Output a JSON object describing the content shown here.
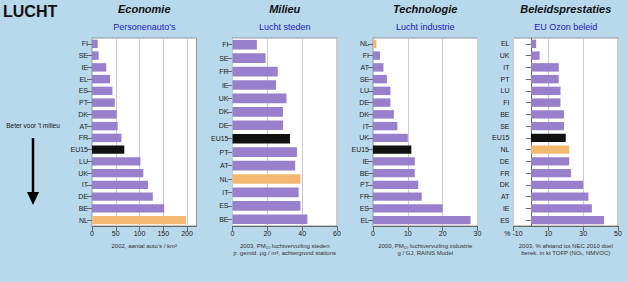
{
  "title": "LUCHT",
  "annotations": [
    "Beter voor 't milieu"
  ],
  "chart_data": [
    {
      "type": "bar",
      "orientation": "horizontal",
      "grid": true,
      "title": "Economie",
      "subtitle": "Personenauto's",
      "xlabel": "2002, aantal auto's / km²",
      "xlim": [
        0,
        220
      ],
      "xticks": [
        0,
        50,
        100,
        150,
        200
      ],
      "categories": [
        "FI",
        "SE",
        "IE",
        "EL",
        "ES",
        "PT",
        "DK",
        "AT",
        "FR",
        "EU15",
        "LU",
        "UK",
        "IT",
        "DE",
        "BE",
        "NL"
      ],
      "values": [
        12,
        14,
        30,
        38,
        43,
        48,
        52,
        54,
        62,
        68,
        102,
        108,
        118,
        128,
        152,
        198
      ],
      "colors": [
        "#9980cc",
        "#9980cc",
        "#9980cc",
        "#9980cc",
        "#9980cc",
        "#9980cc",
        "#9980cc",
        "#9980cc",
        "#9980cc",
        "#111111",
        "#9980cc",
        "#9980cc",
        "#9980cc",
        "#9980cc",
        "#9980cc",
        "#f5b870"
      ]
    },
    {
      "type": "bar",
      "orientation": "horizontal",
      "grid": true,
      "title": "Milieu",
      "subtitle": "Lucht steden",
      "xlabel": "2003, PM₁₀ luchtvervuiling steden\njr. gemid. μg / m³, achtergrond stations",
      "xlim": [
        0,
        60
      ],
      "xticks": [
        0,
        20,
        40,
        60
      ],
      "categories": [
        "FI",
        "SE",
        "FR",
        "IE",
        "UK",
        "DK",
        "DE",
        "EU15",
        "PT",
        "AT",
        "NL",
        "IT",
        "ES",
        "BE"
      ],
      "values": [
        14,
        19,
        26,
        25,
        31,
        29,
        29,
        33,
        37,
        36,
        39,
        38,
        39,
        43
      ],
      "colors": [
        "#9980cc",
        "#9980cc",
        "#9980cc",
        "#9980cc",
        "#9980cc",
        "#9980cc",
        "#9980cc",
        "#111111",
        "#9980cc",
        "#9980cc",
        "#f5b870",
        "#9980cc",
        "#9980cc",
        "#9980cc"
      ]
    },
    {
      "type": "bar",
      "orientation": "horizontal",
      "grid": true,
      "title": "Technologie",
      "subtitle": "Lucht industrie",
      "xlabel": "2000, PM₁₀ luchtvervuiling industrie\ng / GJ, RAINS Model",
      "xlim": [
        0,
        30
      ],
      "xticks": [
        0,
        10,
        20,
        30
      ],
      "categories": [
        "NL",
        "FI",
        "AT",
        "SE",
        "LU",
        "DE",
        "DK",
        "IT",
        "UK",
        "EU15",
        "IE",
        "BE",
        "PT",
        "FR",
        "ES",
        "EL"
      ],
      "values": [
        1,
        2,
        3,
        4,
        5,
        5,
        6,
        7,
        10,
        11,
        12,
        12,
        13,
        14,
        20,
        28
      ],
      "colors": [
        "#f5b870",
        "#9980cc",
        "#9980cc",
        "#9980cc",
        "#9980cc",
        "#9980cc",
        "#9980cc",
        "#9980cc",
        "#9980cc",
        "#111111",
        "#9980cc",
        "#9980cc",
        "#9980cc",
        "#9980cc",
        "#9980cc",
        "#9980cc"
      ]
    },
    {
      "type": "bar",
      "orientation": "horizontal",
      "grid": true,
      "title": "Beleidsprestaties",
      "subtitle": "EU Ozon beleid",
      "xlabel": "2003, % afstand tot NEC 2010 doel\nberek. in kt TOFP (NOₓ, NMVOC)",
      "xlim": [
        -10,
        50
      ],
      "xticks": [
        {
          "value": -10,
          "label": "% -10"
        },
        10,
        30,
        50
      ],
      "categories": [
        "EL",
        "UK",
        "IT",
        "PT",
        "LU",
        "FI",
        "BE",
        "SE",
        "EU15",
        "NL",
        "DE",
        "FR",
        "DK",
        "AT",
        "IE",
        "ES"
      ],
      "values": [
        3,
        5,
        16,
        16,
        17,
        17,
        19,
        19,
        20,
        22,
        22,
        23,
        30,
        33,
        35,
        42
      ],
      "colors": [
        "#9980cc",
        "#9980cc",
        "#9980cc",
        "#9980cc",
        "#9980cc",
        "#9980cc",
        "#9980cc",
        "#9980cc",
        "#111111",
        "#f5b870",
        "#9980cc",
        "#9980cc",
        "#9980cc",
        "#9980cc",
        "#9980cc",
        "#9980cc"
      ]
    }
  ]
}
